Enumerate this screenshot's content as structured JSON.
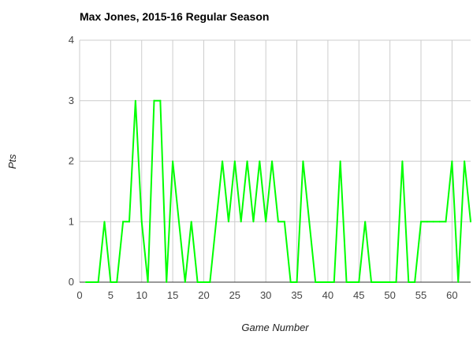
{
  "chart_data": {
    "type": "line",
    "title": "Max Jones, 2015-16 Regular Season",
    "xlabel": "Game Number",
    "ylabel": "Pts",
    "xlim": [
      0,
      63
    ],
    "ylim": [
      0,
      4
    ],
    "x_ticks": [
      0,
      5,
      10,
      15,
      20,
      25,
      30,
      35,
      40,
      45,
      50,
      55,
      60
    ],
    "y_ticks": [
      0,
      1,
      2,
      3,
      4
    ],
    "grid": true,
    "legend": "none",
    "series_color": "#00ff00",
    "series": [
      {
        "x": [
          1,
          2,
          3,
          4,
          5,
          6,
          7,
          8,
          9,
          10,
          11,
          12,
          13,
          14,
          15,
          16,
          17,
          18,
          19,
          20,
          21,
          22,
          23,
          24,
          25,
          26,
          27,
          28,
          29,
          30,
          31,
          32,
          33,
          34,
          35,
          36,
          37,
          38,
          39,
          40,
          41,
          42,
          43,
          44,
          45,
          46,
          47,
          48,
          49,
          50,
          51,
          52,
          53,
          54,
          55,
          56,
          57,
          58,
          59,
          60,
          61,
          62,
          63
        ],
        "values": [
          0,
          0,
          0,
          1,
          0,
          0,
          1,
          1,
          3,
          1,
          0,
          3,
          3,
          0,
          2,
          1,
          0,
          1,
          0,
          0,
          0,
          1,
          2,
          1,
          2,
          1,
          2,
          1,
          2,
          1,
          2,
          1,
          1,
          0,
          0,
          2,
          1,
          0,
          0,
          0,
          0,
          2,
          0,
          0,
          0,
          1,
          0,
          0,
          0,
          0,
          0,
          2,
          0,
          0,
          1,
          1,
          1,
          1,
          1,
          2,
          0,
          2,
          1
        ]
      }
    ]
  }
}
